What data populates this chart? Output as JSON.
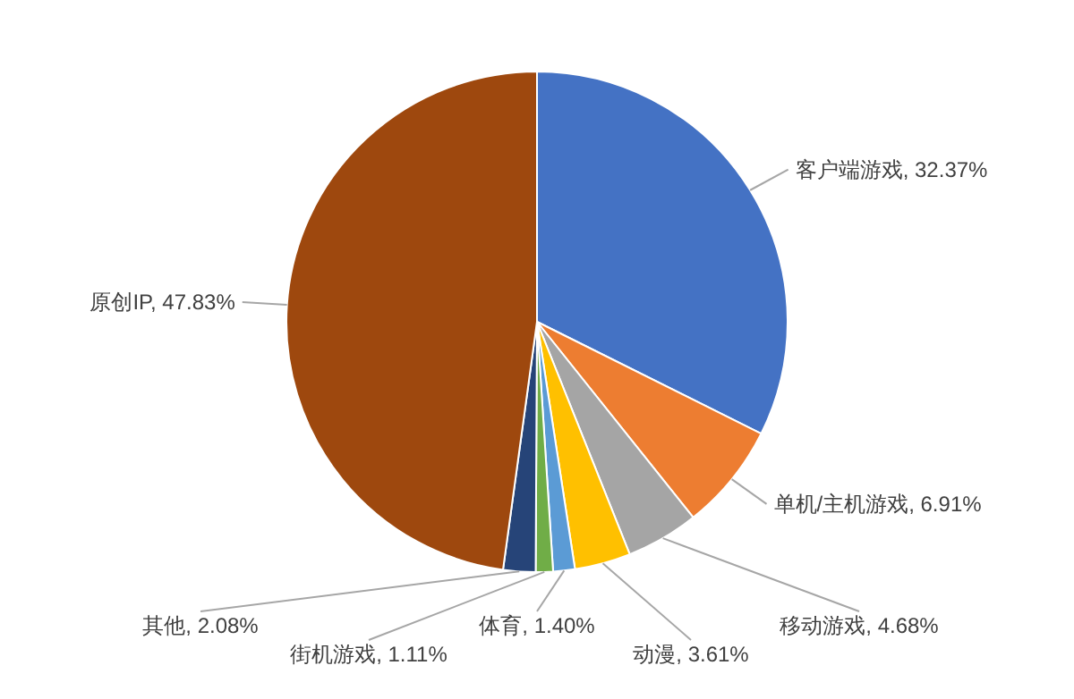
{
  "chart_data": {
    "type": "pie",
    "categories": [
      "客户端游戏",
      "单机/主机游戏",
      "移动游戏",
      "动漫",
      "体育",
      "街机游戏",
      "其他",
      "原创IP"
    ],
    "values": [
      32.37,
      6.91,
      4.68,
      3.61,
      1.4,
      1.11,
      2.08,
      47.83
    ],
    "colors": [
      "#4472c4",
      "#ed7d31",
      "#a5a5a5",
      "#ffc000",
      "#5b9bd5",
      "#70ad47",
      "#264478",
      "#9e480e"
    ],
    "value_labels": [
      "32.37%",
      "6.91%",
      "4.68%",
      "3.61%",
      "1.40%",
      "1.11%",
      "2.08%",
      "47.83%"
    ]
  }
}
